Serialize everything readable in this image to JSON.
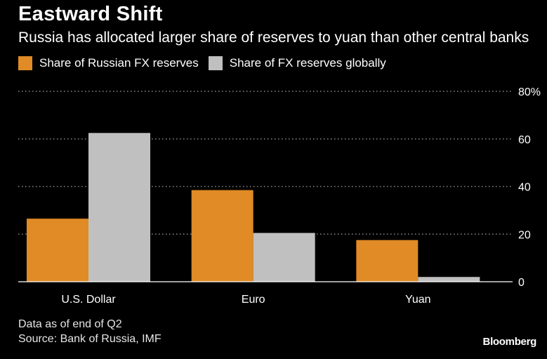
{
  "chart_data": {
    "type": "bar",
    "title": "Eastward Shift",
    "subtitle": "Russia has allocated larger share of reserves to yuan than other central banks",
    "categories": [
      "U.S. Dollar",
      "Euro",
      "Yuan"
    ],
    "series": [
      {
        "name": "Share of Russian FX reserves",
        "values": [
          26.5,
          38.5,
          17.5
        ],
        "color": "#e08b25"
      },
      {
        "name": "Share of FX reserves globally",
        "values": [
          62.5,
          20.5,
          2
        ],
        "color": "#c0c0c0"
      }
    ],
    "ylim": [
      0,
      80
    ],
    "yticks": [
      "0",
      "20",
      "40",
      "60",
      "80%"
    ],
    "grid": true,
    "legend_position": "top-left",
    "notes": [
      "Data as of end of Q2",
      "Source: Bank of Russia, IMF"
    ],
    "brand": "Bloomberg"
  }
}
